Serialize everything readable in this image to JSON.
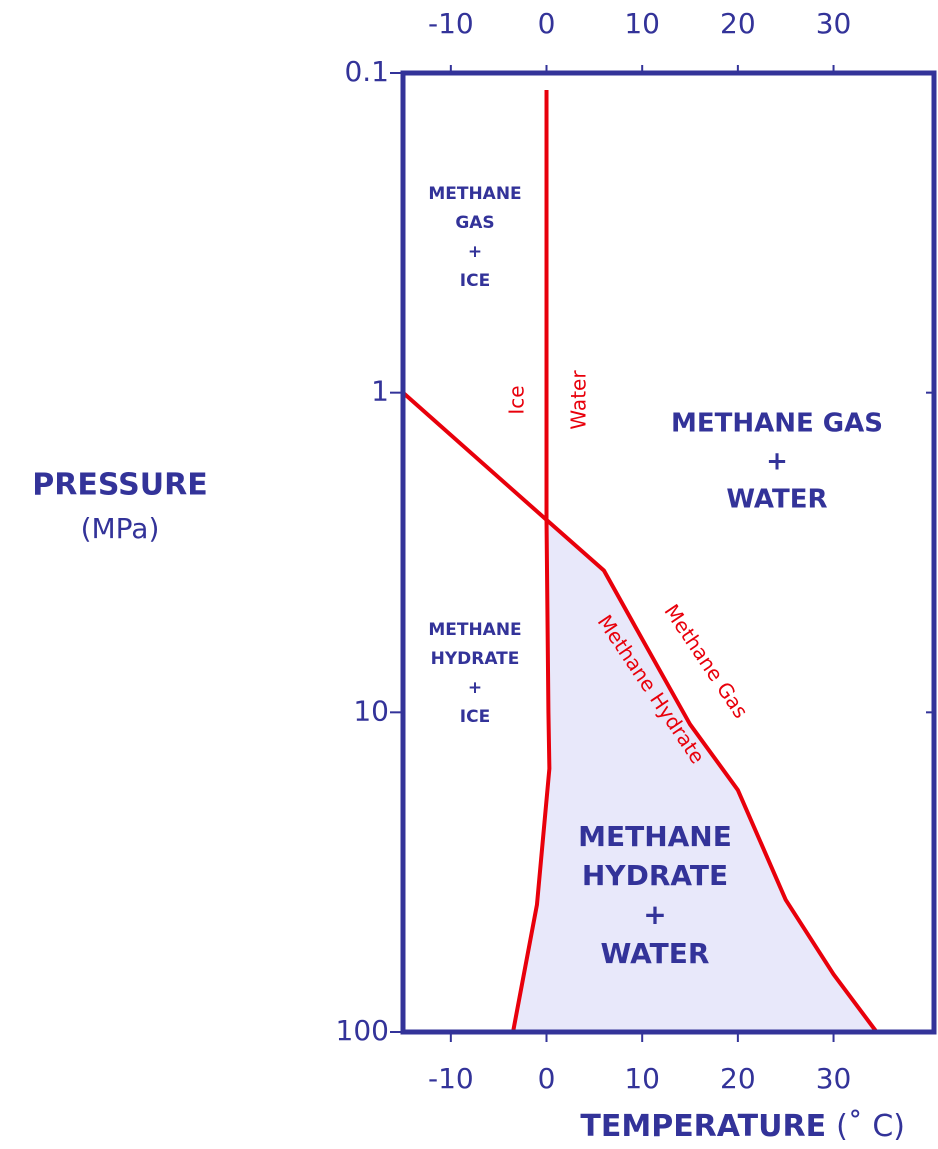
{
  "chart_data": {
    "type": "line",
    "xlim": [
      -15,
      40.5
    ],
    "xticks": [
      -10,
      0,
      10,
      20,
      30
    ],
    "ylim": [
      0.1,
      100
    ],
    "yticks": [
      0.1,
      1,
      10,
      100
    ],
    "log_y": true,
    "y_reversed": true,
    "axis_color": "#333399",
    "fill_color": "#e8e8fa",
    "y_label": "PRESSURE",
    "y_label_unit": "(MPa)",
    "x_label": "TEMPERATURE",
    "x_label_unit": "(˚ C)",
    "series": [
      {
        "color": "#e8000b",
        "x": [
          0,
          0,
          0.2,
          0.3,
          -1,
          -3.5
        ],
        "values": [
          0.113,
          2.5,
          10,
          15,
          40,
          100
        ]
      },
      {
        "color": "#e8000b",
        "x": [
          -15,
          0
        ],
        "values": [
          1,
          2.5
        ]
      },
      {
        "color": "#e8000b",
        "x": [
          0,
          6,
          10,
          15,
          20,
          25,
          30,
          34.5
        ],
        "values": [
          2.5,
          3.6,
          5.9,
          10.9,
          17.5,
          38.6,
          66,
          100
        ]
      }
    ],
    "region_labels": [
      [
        "METHANE",
        "GAS",
        "+",
        "ICE"
      ],
      [
        "METHANE",
        "HYDRATE",
        "+",
        "ICE"
      ],
      [
        "METHANE GAS",
        "+",
        "WATER"
      ],
      [
        "METHANE",
        "HYDRATE",
        "+",
        "WATER"
      ]
    ],
    "curve_labels": [
      "Ice",
      "Water",
      "Methane Gas",
      "Methane Hydrate"
    ]
  }
}
